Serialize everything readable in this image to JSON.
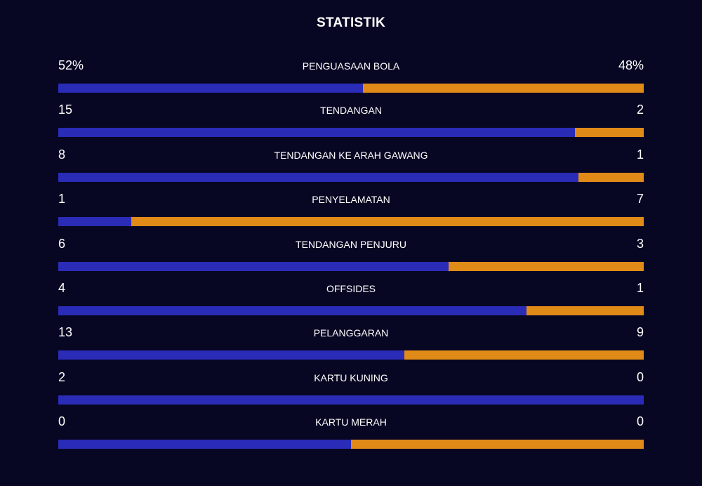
{
  "header": {
    "title": "STATISTIK"
  },
  "colors": {
    "home": "#2a2bb6",
    "away": "#e08a17",
    "background": "#070723"
  },
  "stats": [
    {
      "label": "PENGUASAAN BOLA",
      "home": "52%",
      "away": "48%",
      "home_fraction": 0.52
    },
    {
      "label": "TENDANGAN",
      "home": "15",
      "away": "2",
      "home_fraction": 0.882
    },
    {
      "label": "TENDANGAN KE ARAH GAWANG",
      "home": "8",
      "away": "1",
      "home_fraction": 0.889
    },
    {
      "label": "PENYELAMATAN",
      "home": "1",
      "away": "7",
      "home_fraction": 0.125
    },
    {
      "label": "TENDANGAN PENJURU",
      "home": "6",
      "away": "3",
      "home_fraction": 0.667
    },
    {
      "label": "OFFSIDES",
      "home": "4",
      "away": "1",
      "home_fraction": 0.8
    },
    {
      "label": "PELANGGARAN",
      "home": "13",
      "away": "9",
      "home_fraction": 0.591
    },
    {
      "label": "KARTU KUNING",
      "home": "2",
      "away": "0",
      "home_fraction": 1.0
    },
    {
      "label": "KARTU MERAH",
      "home": "0",
      "away": "0",
      "home_fraction": 0.5
    }
  ]
}
